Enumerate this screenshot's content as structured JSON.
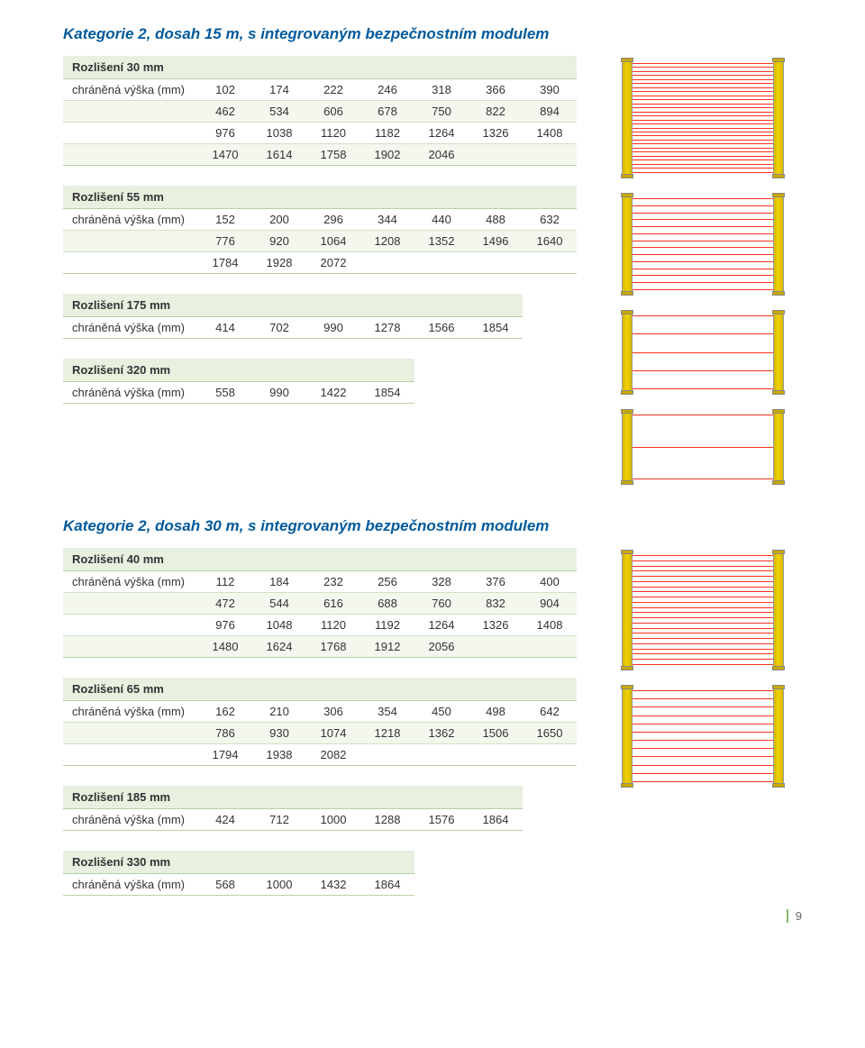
{
  "section1": {
    "title": "Kategorie 2, dosah 15 m, s integrovaným bezpečnostním modulem",
    "tables": [
      {
        "header": "Rozlišení 30 mm",
        "label": "chráněná výška (mm)",
        "cols": 7,
        "rows": [
          [
            "102",
            "174",
            "222",
            "246",
            "318",
            "366",
            "390"
          ],
          [
            "462",
            "534",
            "606",
            "678",
            "750",
            "822",
            "894"
          ],
          [
            "976",
            "1038",
            "1120",
            "1182",
            "1264",
            "1326",
            "1408"
          ],
          [
            "1470",
            "1614",
            "1758",
            "1902",
            "2046",
            "",
            ""
          ]
        ]
      },
      {
        "header": "Rozlišení 55 mm",
        "label": "chráněná výška (mm)",
        "cols": 7,
        "rows": [
          [
            "152",
            "200",
            "296",
            "344",
            "440",
            "488",
            "632"
          ],
          [
            "776",
            "920",
            "1064",
            "1208",
            "1352",
            "1496",
            "1640"
          ],
          [
            "1784",
            "1928",
            "2072",
            "",
            "",
            "",
            ""
          ]
        ]
      },
      {
        "header": "Rozlišení 175 mm",
        "label": "chráněná výška (mm)",
        "cols": 6,
        "rows": [
          [
            "414",
            "702",
            "990",
            "1278",
            "1566",
            "1854"
          ]
        ]
      },
      {
        "header": "Rozlišení 320 mm",
        "label": "chráněná výška (mm)",
        "cols": 4,
        "rows": [
          [
            "558",
            "990",
            "1422",
            "1854"
          ]
        ]
      }
    ],
    "curtains": [
      {
        "height": 130,
        "beams": 28
      },
      {
        "height": 110,
        "beams": 14
      },
      {
        "height": 90,
        "beams": 5
      },
      {
        "height": 80,
        "beams": 3
      }
    ]
  },
  "section2": {
    "title": "Kategorie 2, dosah 30 m, s integrovaným bezpečnostním modulem",
    "tables": [
      {
        "header": "Rozlišení 40 mm",
        "label": "chráněná výška (mm)",
        "cols": 7,
        "rows": [
          [
            "112",
            "184",
            "232",
            "256",
            "328",
            "376",
            "400"
          ],
          [
            "472",
            "544",
            "616",
            "688",
            "760",
            "832",
            "904"
          ],
          [
            "976",
            "1048",
            "1120",
            "1192",
            "1264",
            "1326",
            "1408"
          ],
          [
            "1480",
            "1624",
            "1768",
            "1912",
            "2056",
            "",
            ""
          ]
        ]
      },
      {
        "header": "Rozlišení 65 mm",
        "label": "chráněná výška (mm)",
        "cols": 7,
        "rows": [
          [
            "162",
            "210",
            "306",
            "354",
            "450",
            "498",
            "642"
          ],
          [
            "786",
            "930",
            "1074",
            "1218",
            "1362",
            "1506",
            "1650"
          ],
          [
            "1794",
            "1938",
            "2082",
            "",
            "",
            "",
            ""
          ]
        ]
      },
      {
        "header": "Rozlišení 185 mm",
        "label": "chráněná výška (mm)",
        "cols": 6,
        "rows": [
          [
            "424",
            "712",
            "1000",
            "1288",
            "1576",
            "1864"
          ]
        ]
      },
      {
        "header": "Rozlišení 330 mm",
        "label": "chráněná výška (mm)",
        "cols": 4,
        "rows": [
          [
            "568",
            "1000",
            "1432",
            "1864"
          ]
        ]
      }
    ],
    "curtains": [
      {
        "height": 130,
        "beams": 22
      },
      {
        "height": 110,
        "beams": 12
      }
    ]
  },
  "page_number": "9",
  "colors": {
    "title": "#005a9c",
    "header_bg": "#e8f0e0",
    "row_alt_bg": "#f3f7ee",
    "border": "#cfe2c4",
    "border_strong": "#b8d0a8",
    "beam": "#ff3020",
    "pillar": "#f0d000"
  }
}
